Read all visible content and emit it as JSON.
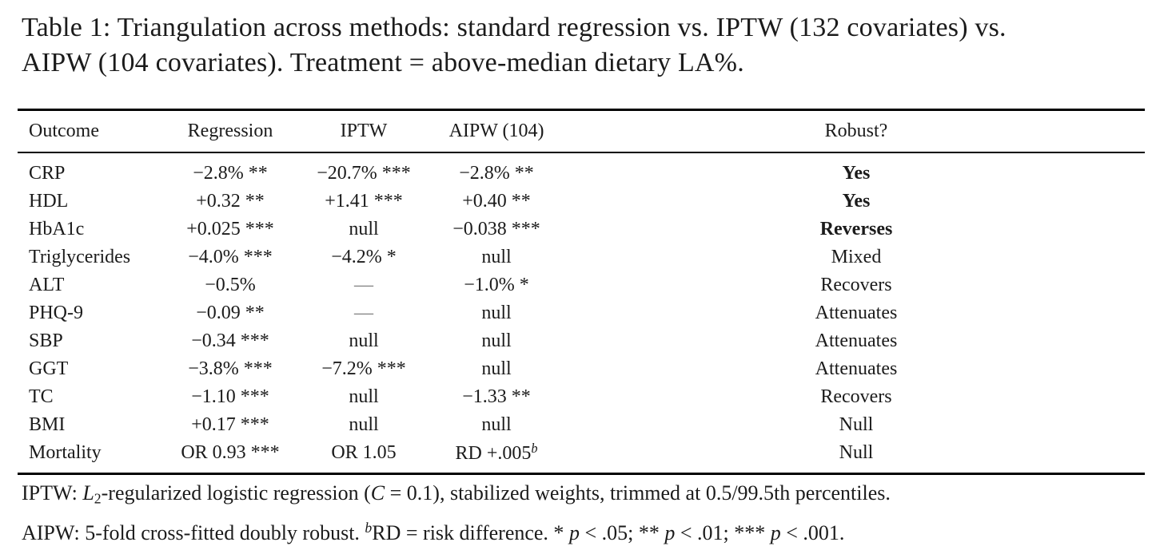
{
  "page": {
    "background": "#ffffff",
    "text_color": "#1b1b1b",
    "rule_color": "#000000",
    "dash_color": "#808080"
  },
  "caption": {
    "lines": [
      "Table 1: Triangulation across methods: standard regression vs. IPTW (132 covariates) vs.",
      "AIPW (104 covariates). Treatment = above-median dietary LA%."
    ]
  },
  "table": {
    "columns": [
      {
        "key": "outcome",
        "label": "Outcome",
        "align": "left"
      },
      {
        "key": "regression",
        "label": "Regression",
        "align": "center"
      },
      {
        "key": "iptw",
        "label": "IPTW",
        "align": "center"
      },
      {
        "key": "aipw",
        "label": "AIPW (104)",
        "align": "center"
      },
      {
        "key": "robust",
        "label": "Robust?",
        "align": "center"
      }
    ],
    "rows": [
      {
        "outcome": "CRP",
        "regression": "−2.8% **",
        "iptw": "−20.7% ***",
        "aipw": "−2.8% **",
        "robust": "Yes",
        "robust_bold": true
      },
      {
        "outcome": "HDL",
        "regression": "+0.32 **",
        "iptw": "+1.41 ***",
        "aipw": "+0.40 **",
        "robust": "Yes",
        "robust_bold": true
      },
      {
        "outcome": "HbA1c",
        "regression": "+0.025 ***",
        "iptw": "null",
        "aipw": "−0.038 ***",
        "robust": "Reverses",
        "robust_bold": true
      },
      {
        "outcome": "Triglycerides",
        "regression": "−4.0% ***",
        "iptw": "−4.2% *",
        "aipw": "null",
        "robust": "Mixed",
        "robust_bold": false
      },
      {
        "outcome": "ALT",
        "regression": "−0.5%",
        "iptw": "—",
        "aipw": "−1.0% *",
        "robust": "Recovers",
        "robust_bold": false
      },
      {
        "outcome": "PHQ-9",
        "regression": "−0.09 **",
        "iptw": "—",
        "aipw": "null",
        "robust": "Attenuates",
        "robust_bold": false
      },
      {
        "outcome": "SBP",
        "regression": "−0.34 ***",
        "iptw": "null",
        "aipw": "null",
        "robust": "Attenuates",
        "robust_bold": false
      },
      {
        "outcome": "GGT",
        "regression": "−3.8% ***",
        "iptw": "−7.2% ***",
        "aipw": "null",
        "robust": "Attenuates",
        "robust_bold": false
      },
      {
        "outcome": "TC",
        "regression": "−1.10 ***",
        "iptw": "null",
        "aipw": "−1.33 **",
        "robust": "Recovers",
        "robust_bold": false
      },
      {
        "outcome": "BMI",
        "regression": "+0.17 ***",
        "iptw": "null",
        "aipw": "null",
        "robust": "Null",
        "robust_bold": false
      },
      {
        "outcome": "Mortality",
        "regression": "OR 0.93 ***",
        "iptw": "OR 1.05",
        "aipw": "RD +.005",
        "aipw_sup": "b",
        "robust": "Null",
        "robust_bold": false
      }
    ]
  },
  "footnotes": [
    {
      "segments": [
        {
          "t": "IPTW: "
        },
        {
          "t": "L",
          "i": true
        },
        {
          "t": "2",
          "sub": true
        },
        {
          "t": "-regularized logistic regression ("
        },
        {
          "t": "C",
          "i": true
        },
        {
          "t": " = 0.1), stabilized weights, trimmed at 0.5/99.5th percentiles."
        }
      ]
    },
    {
      "segments": [
        {
          "t": "AIPW: 5-fold cross-fitted doubly robust. "
        },
        {
          "t": "b",
          "sup": true
        },
        {
          "t": "RD = risk difference. * "
        },
        {
          "t": "p",
          "i": true
        },
        {
          "t": " < .05; ** "
        },
        {
          "t": "p",
          "i": true
        },
        {
          "t": " < .01; *** "
        },
        {
          "t": "p",
          "i": true
        },
        {
          "t": " < .001."
        }
      ]
    }
  ]
}
